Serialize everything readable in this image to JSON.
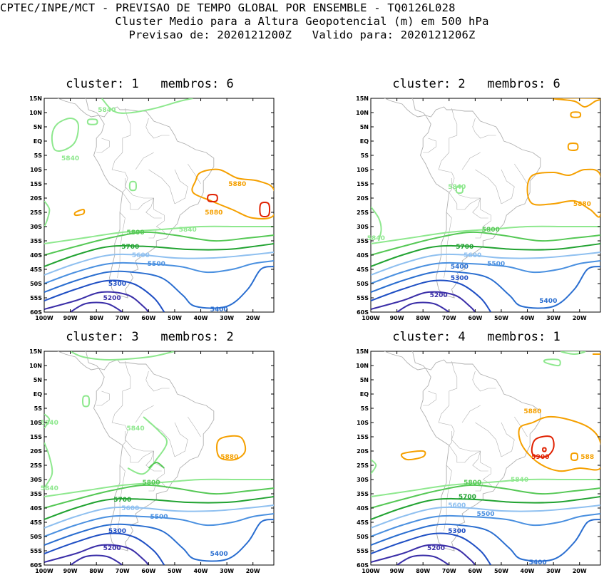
{
  "header": {
    "line1": "CPTEC/INPE/MCT - PREVISAO DE TEMPO GLOBAL POR ENSEMBLE - TQ0126L028",
    "line2": "Cluster Medio para a Altura Geopotencial (m) em 500 hPa",
    "line3": "Previsao de: 2020121200Z   Valido para: 2020121206Z"
  },
  "axes": {
    "lat_labels": [
      "15N",
      "10N",
      "5N",
      "EQ",
      "5S",
      "10S",
      "15S",
      "20S",
      "25S",
      "30S",
      "35S",
      "40S",
      "45S",
      "50S",
      "55S",
      "60S"
    ],
    "lon_labels": [
      "100W",
      "90W",
      "80W",
      "70W",
      "60W",
      "50W",
      "40W",
      "30W",
      "20W"
    ]
  },
  "colors": {
    "c5200": "#3b2fa8",
    "c5300": "#1f4fc4",
    "c5400": "#2a6ed0",
    "c5500": "#4a90e0",
    "c5600": "#8fc0f0",
    "c5700": "#22a332",
    "c5800": "#55c855",
    "c5840": "#8ee88e",
    "c5880": "#f5a000",
    "c5900": "#e02000",
    "coast": "#b0b0b0"
  },
  "panels": [
    {
      "title": "cluster: 1   membros: 6",
      "labels": [
        {
          "text": "5840",
          "lon": -76,
          "lat": 11
        },
        {
          "text": "5840",
          "lon": -90,
          "lat": -6
        },
        {
          "text": "5880",
          "lon": -26,
          "lat": -15
        },
        {
          "text": "5880",
          "lon": -35,
          "lat": -25
        },
        {
          "text": "5840",
          "lon": -45,
          "lat": -31
        },
        {
          "text": "5800",
          "lon": -65,
          "lat": -32
        },
        {
          "text": "5700",
          "lon": -67,
          "lat": -37
        },
        {
          "text": "5600",
          "lon": -63,
          "lat": -40
        },
        {
          "text": "5500",
          "lon": -57,
          "lat": -43
        },
        {
          "text": "5300",
          "lon": -72,
          "lat": -50
        },
        {
          "text": "5200",
          "lon": -74,
          "lat": -55
        },
        {
          "text": "5400",
          "lon": -33,
          "lat": -59
        }
      ]
    },
    {
      "title": "cluster: 2   membros: 6",
      "labels": [
        {
          "text": "5840",
          "lon": -67,
          "lat": -16
        },
        {
          "text": "5880",
          "lon": -19,
          "lat": -22
        },
        {
          "text": "5840",
          "lon": -98,
          "lat": -34
        },
        {
          "text": "5800",
          "lon": -54,
          "lat": -31
        },
        {
          "text": "5700",
          "lon": -64,
          "lat": -37
        },
        {
          "text": "5600",
          "lon": -61,
          "lat": -40
        },
        {
          "text": "5500",
          "lon": -52,
          "lat": -43
        },
        {
          "text": "5400",
          "lon": -66,
          "lat": -44
        },
        {
          "text": "5300",
          "lon": -66,
          "lat": -48
        },
        {
          "text": "5200",
          "lon": -74,
          "lat": -54
        },
        {
          "text": "5400",
          "lon": -32,
          "lat": -56
        }
      ]
    },
    {
      "title": "cluster: 3   membros: 2",
      "labels": [
        {
          "text": "5840",
          "lon": -98,
          "lat": -10
        },
        {
          "text": "5840",
          "lon": -65,
          "lat": -12
        },
        {
          "text": "5880",
          "lon": -29,
          "lat": -22
        },
        {
          "text": "5840",
          "lon": -98,
          "lat": -33
        },
        {
          "text": "5800",
          "lon": -59,
          "lat": -31
        },
        {
          "text": "5700",
          "lon": -70,
          "lat": -37
        },
        {
          "text": "5600",
          "lon": -67,
          "lat": -40
        },
        {
          "text": "5500",
          "lon": -56,
          "lat": -43
        },
        {
          "text": "5300",
          "lon": -72,
          "lat": -48
        },
        {
          "text": "5200",
          "lon": -74,
          "lat": -54
        },
        {
          "text": "5400",
          "lon": -33,
          "lat": -56
        }
      ]
    },
    {
      "title": "cluster: 4   membros: 1",
      "labels": [
        {
          "text": "5880",
          "lon": -38,
          "lat": -6
        },
        {
          "text": "5900",
          "lon": -35,
          "lat": -22
        },
        {
          "text": "588",
          "lon": -17,
          "lat": -22
        },
        {
          "text": "5840",
          "lon": -43,
          "lat": -30
        },
        {
          "text": "5800",
          "lon": -61,
          "lat": -31
        },
        {
          "text": "5700",
          "lon": -63,
          "lat": -36
        },
        {
          "text": "5600",
          "lon": -67,
          "lat": -39
        },
        {
          "text": "5500",
          "lon": -56,
          "lat": -42
        },
        {
          "text": "5300",
          "lon": -67,
          "lat": -48
        },
        {
          "text": "5200",
          "lon": -75,
          "lat": -54
        },
        {
          "text": "5400",
          "lon": -36,
          "lat": -59
        }
      ]
    }
  ]
}
